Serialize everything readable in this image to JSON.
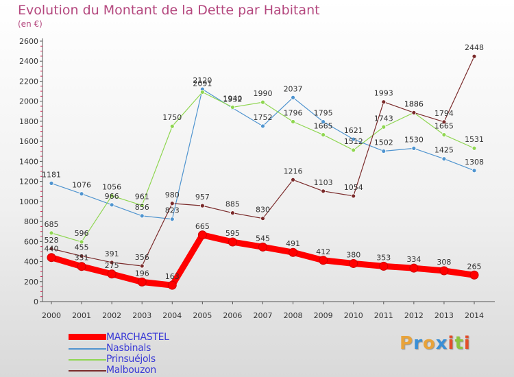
{
  "title": "Evolution du Montant de la Dette par Habitant",
  "subtitle": "(en €)",
  "logo": {
    "text": "Proxiti",
    "colors": [
      "#e8a33b",
      "#3a8fd6",
      "#e8a33b",
      "#3a8fd6",
      "#e24e2b",
      "#8cc43c",
      "#e24e2b"
    ]
  },
  "chart_data": {
    "type": "line",
    "x": [
      "2000",
      "2001",
      "2002",
      "2003",
      "2004",
      "2005",
      "2006",
      "2007",
      "2008",
      "2009",
      "2010",
      "2011",
      "2012",
      "2013",
      "2014"
    ],
    "ylim": [
      0,
      2600
    ],
    "yticks": [
      "0",
      "200",
      "400",
      "600",
      "800",
      "1000",
      "1200",
      "1400",
      "1600",
      "1800",
      "2000",
      "2200",
      "2400",
      "2600"
    ],
    "grid": false,
    "legend_position": "bottom-left",
    "series": [
      {
        "name": "Nasbinals",
        "color": "#4f94cf",
        "values": [
          1181,
          1076,
          966,
          856,
          823,
          2120,
          1932,
          1752,
          2037,
          1795,
          1621,
          1502,
          1530,
          1425,
          1308
        ],
        "labels": [
          "1181",
          "1076",
          "966",
          "856",
          "823",
          "2120",
          "1932",
          "1752",
          "2037",
          "1795",
          "1621",
          "1502",
          "1530",
          "1425",
          "1308"
        ]
      },
      {
        "name": "Prinsuéjols",
        "color": "#8fd651",
        "values": [
          685,
          596,
          1056,
          961,
          1750,
          2091,
          1940,
          1990,
          1796,
          1665,
          1512,
          1743,
          1886,
          1665,
          1531
        ],
        "labels": [
          "685",
          "596",
          "1056",
          "961",
          "1750",
          "2091",
          "1940",
          "1990",
          "1796",
          "1665",
          "1512",
          "1743",
          "1886",
          "1665",
          "1531"
        ]
      },
      {
        "name": "Malbouzon",
        "color": "#7a2a2a",
        "values": [
          528,
          455,
          391,
          356,
          980,
          957,
          885,
          830,
          1216,
          1103,
          1054,
          1993,
          1886,
          1794,
          2448
        ],
        "labels": [
          "528",
          "455",
          "391",
          "356",
          "980",
          "957",
          "885",
          "830",
          "1216",
          "1103",
          "1054",
          "1993",
          "1886",
          "1794",
          "2448"
        ]
      },
      {
        "name": "MARCHASTEL",
        "color": "#ff0000",
        "values": [
          440,
          351,
          275,
          196,
          163,
          665,
          595,
          545,
          491,
          412,
          380,
          353,
          334,
          308,
          265
        ],
        "labels": [
          "440",
          "351",
          "275",
          "196",
          "163",
          "665",
          "595",
          "545",
          "491",
          "412",
          "380",
          "353",
          "334",
          "308",
          "265"
        ]
      }
    ],
    "legend_order": [
      "MARCHASTEL",
      "Nasbinals",
      "Prinsuéjols",
      "Malbouzon"
    ]
  }
}
